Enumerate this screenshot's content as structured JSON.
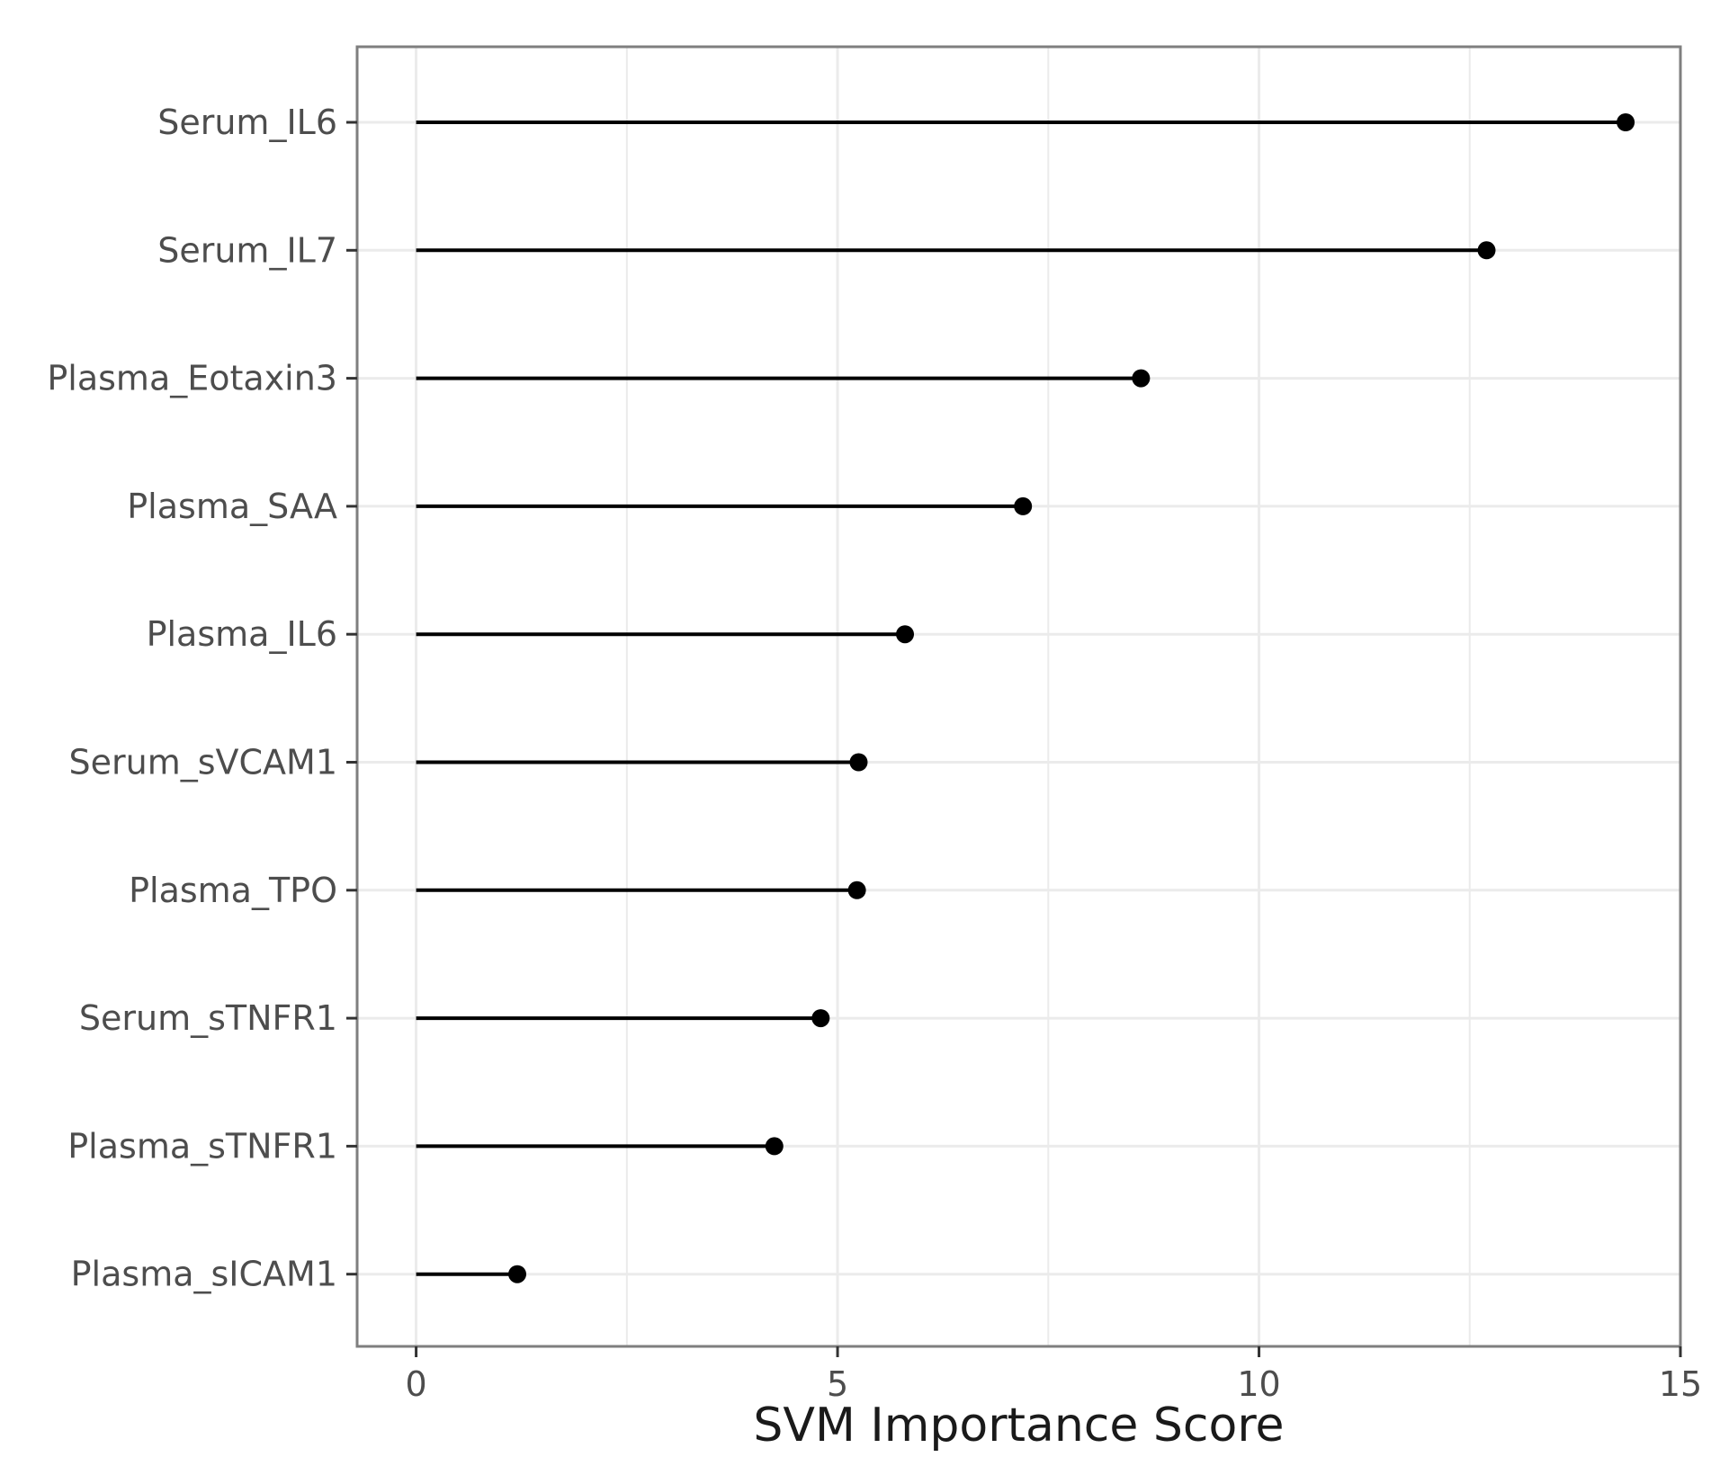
{
  "chart_data": {
    "type": "lollipop",
    "title": "",
    "xlabel": "SVM Importance Score",
    "ylabel": "",
    "xlim": [
      -0.7,
      15.0
    ],
    "xticks": [
      0,
      5,
      10,
      15
    ],
    "grid": true,
    "legend": "none",
    "categories": [
      "Serum_IL6",
      "Serum_IL7",
      "Plasma_Eotaxin3",
      "Plasma_SAA",
      "Plasma_IL6",
      "Serum_sVCAM1",
      "Plasma_TPO",
      "Serum_sTNFR1",
      "Plasma_sTNFR1",
      "Plasma_sICAM1"
    ],
    "values": [
      14.35,
      12.7,
      8.6,
      7.2,
      5.8,
      5.25,
      5.23,
      4.8,
      4.25,
      1.2
    ],
    "colors": {
      "mark": "#000000",
      "grid": "#ebebeb",
      "panel_border": "#7f7f7f",
      "tick_text": "#4d4d4d",
      "axis_title": "#1a1a1a"
    }
  }
}
